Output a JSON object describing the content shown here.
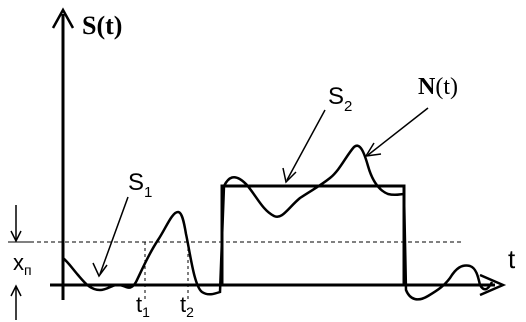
{
  "labels": {
    "y_axis": "S(t)",
    "x_axis": "t",
    "s1": "S",
    "s1_sub": "1",
    "s2": "S",
    "s2_sub": "2",
    "noise": "N",
    "noise_suffix": "(t)",
    "threshold": "x",
    "threshold_sub": "п",
    "t1": "t",
    "t1_sub": "1",
    "t2": "t",
    "t2_sub": "2"
  },
  "colors": {
    "stroke": "#000000",
    "background": "#ffffff"
  }
}
